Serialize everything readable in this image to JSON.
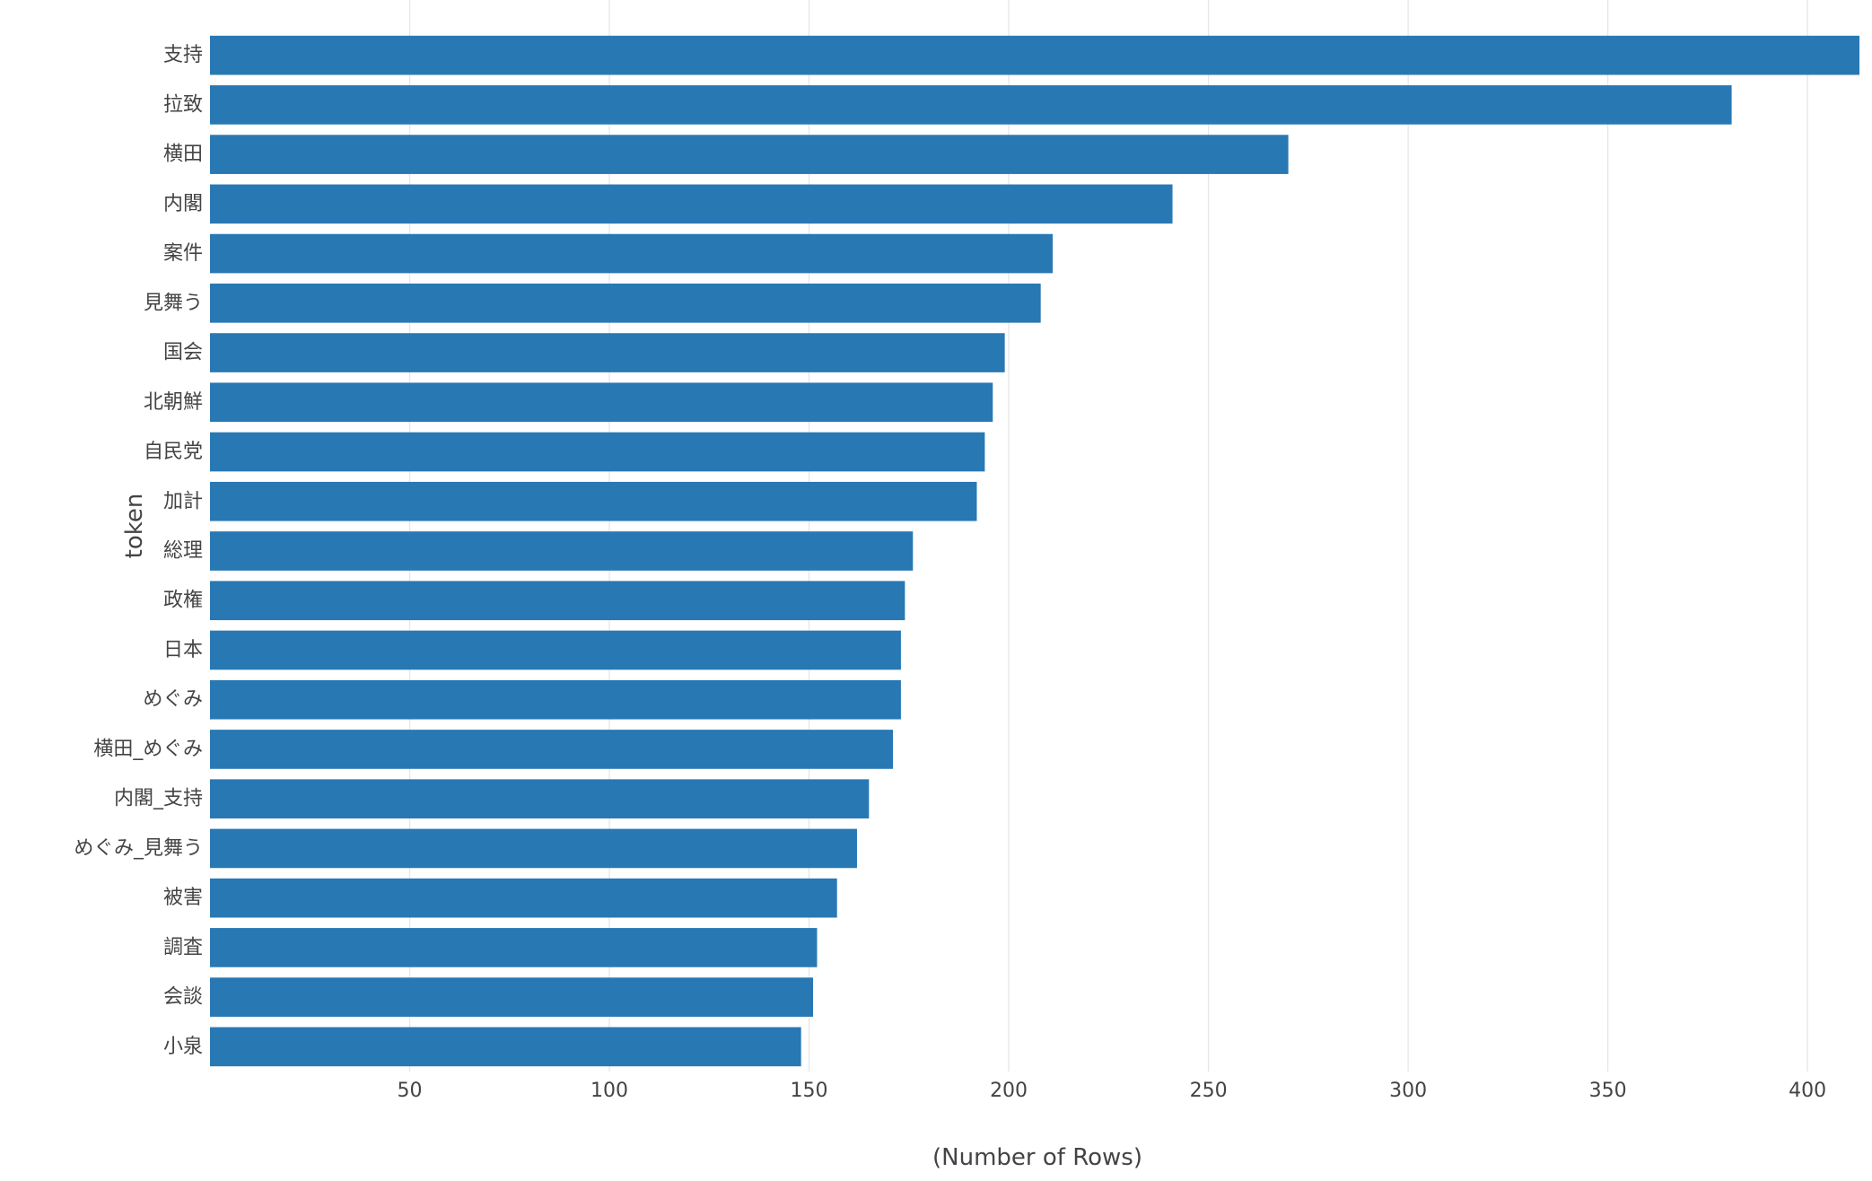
{
  "chart_data": {
    "type": "bar",
    "orientation": "horizontal",
    "categories": [
      "支持",
      "拉致",
      "横田",
      "内閣",
      "案件",
      "見舞う",
      "国会",
      "北朝鮮",
      "自民党",
      "加計",
      "総理",
      "政権",
      "日本",
      "めぐみ",
      "横田_めぐみ",
      "内閣_支持",
      "めぐみ_見舞う",
      "被害",
      "調査",
      "会談",
      "小泉"
    ],
    "values": [
      413,
      381,
      270,
      241,
      211,
      208,
      199,
      196,
      194,
      192,
      176,
      174,
      173,
      173,
      171,
      165,
      162,
      157,
      152,
      151,
      148
    ],
    "title": "",
    "xlabel": "(Number of Rows)",
    "ylabel": "token",
    "xlim": [
      0,
      413
    ],
    "xticks": [
      50,
      100,
      150,
      200,
      250,
      300,
      350,
      400
    ],
    "grid": "vertical",
    "legend": "none",
    "bar_color": "#2878b4"
  }
}
